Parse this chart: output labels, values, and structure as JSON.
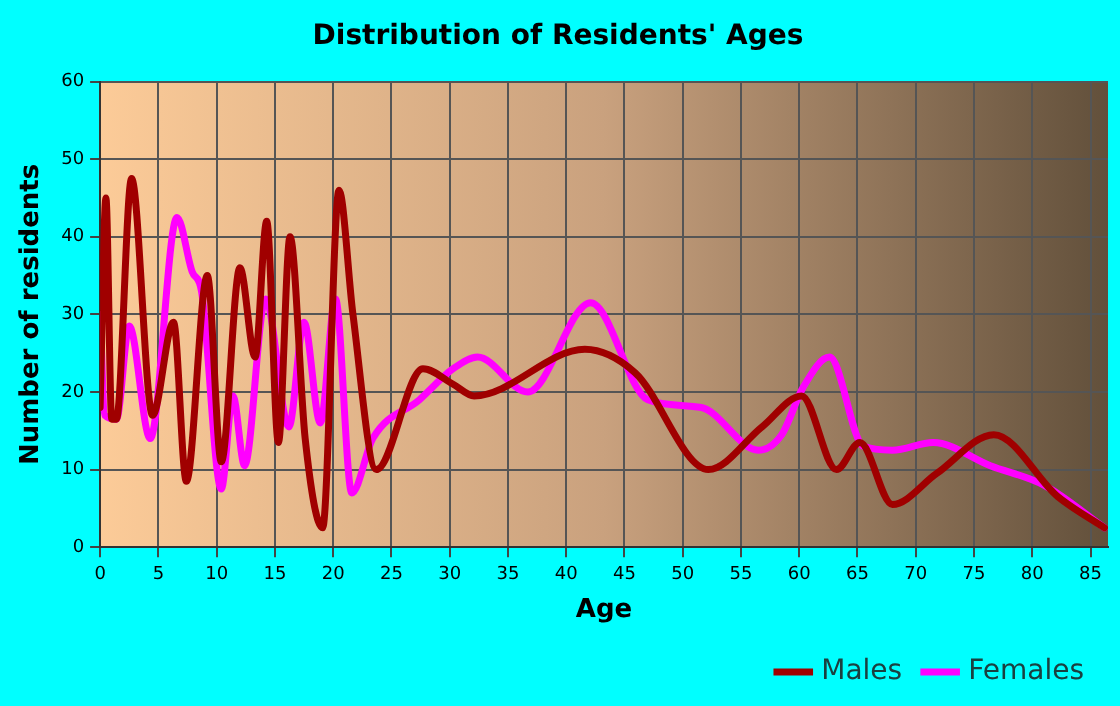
{
  "chart_data": {
    "type": "line",
    "title": "Distribution of Residents' Ages",
    "xlabel": "Age",
    "ylabel": "Number of residents",
    "xlim": [
      0,
      86.5
    ],
    "xticks": [
      0,
      5,
      10,
      15,
      20,
      25,
      30,
      35,
      40,
      45,
      50,
      55,
      60,
      65,
      70,
      75,
      80,
      85
    ],
    "ylim": [
      0,
      60
    ],
    "yticks": [
      0,
      10,
      20,
      30,
      40,
      50,
      60
    ],
    "grid": true,
    "legend": "bottom right",
    "marker": "none",
    "line_style": "solid",
    "series": [
      {
        "name": "Males",
        "color": "#a00000",
        "x": [
          0,
          0.5,
          1,
          1.4,
          2.7,
          4.5,
          6.3,
          7.4,
          9.2,
          10.4,
          12,
          13.3,
          14.3,
          15.3,
          16.3,
          17.6,
          19.1,
          20.5,
          21.7,
          23.7,
          27.7,
          30.3,
          32.1,
          41.6,
          45.9,
          52.2,
          56.8,
          60.2,
          63.2,
          65.2,
          68,
          71.8,
          76.7,
          82.2,
          86.2
        ],
        "values": [
          18,
          45,
          16.5,
          16.5,
          47.5,
          17,
          29,
          8.5,
          35,
          11,
          36,
          24.5,
          42,
          13.5,
          40,
          14,
          2.5,
          46,
          30,
          10,
          23,
          21,
          19.5,
          25.5,
          22.5,
          10,
          15.5,
          19.5,
          10,
          13.5,
          5.5,
          9.5,
          14.5,
          6.5,
          2.5
        ]
      },
      {
        "name": "Females",
        "color": "#ff00ff",
        "x": [
          0,
          0.4,
          1.4,
          2.5,
          4.3,
          6.6,
          7.9,
          8.7,
          10.4,
          11.4,
          12.4,
          14.2,
          16.2,
          17.5,
          18.9,
          20.2,
          21.6,
          23.4,
          27.4,
          30.3,
          32.4,
          36.7,
          42.1,
          47,
          51.6,
          56.5,
          58.5,
          60.3,
          62.6,
          65.5,
          68,
          71.5,
          76.4,
          81,
          86.2
        ],
        "values": [
          30,
          17,
          16.5,
          28.5,
          14,
          42.5,
          35.5,
          33,
          7.5,
          19.5,
          10.5,
          32,
          15.5,
          29,
          16,
          32,
          7,
          14,
          19,
          23,
          24.5,
          20,
          31.5,
          19,
          18,
          12.5,
          14.5,
          20.5,
          24.5,
          13,
          12.5,
          13.5,
          10.5,
          8,
          2.5
        ]
      }
    ]
  }
}
